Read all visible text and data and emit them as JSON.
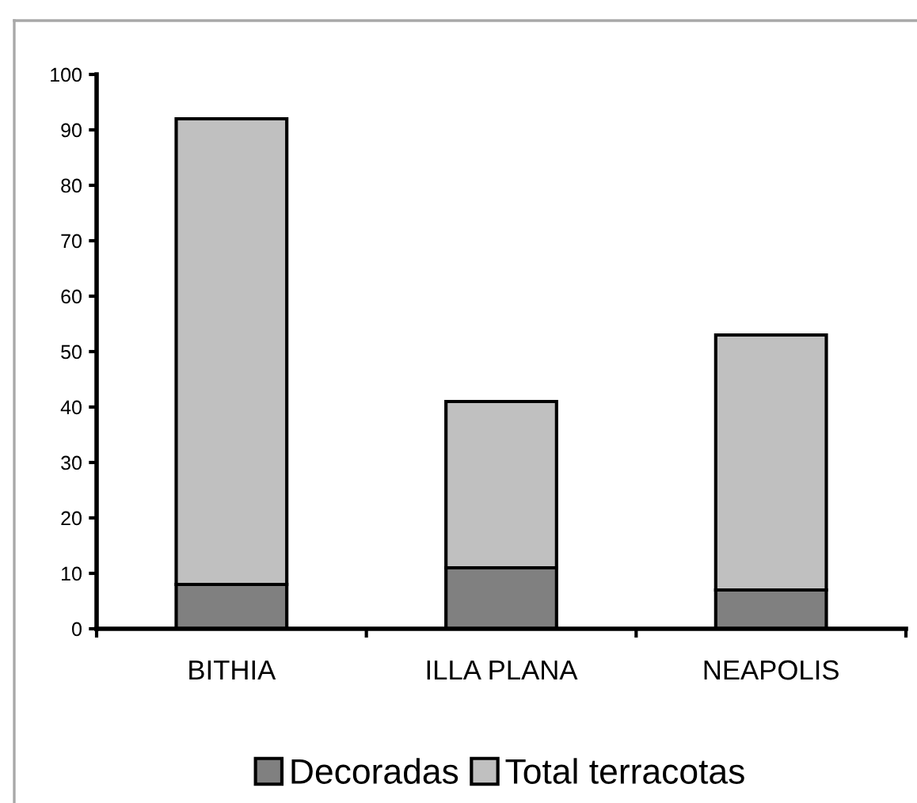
{
  "chart_data": {
    "type": "bar",
    "stacked": true,
    "categories": [
      "BITHIA",
      "ILLA PLANA",
      "NEAPOLIS"
    ],
    "series": [
      {
        "name": "Decoradas",
        "color": "#808080",
        "values": [
          8,
          11,
          7
        ]
      },
      {
        "name": "Total terracotas",
        "color": "#c0c0c0",
        "values": [
          84,
          30,
          46
        ]
      }
    ],
    "ylim": [
      0,
      100
    ],
    "yticks": [
      0,
      10,
      20,
      30,
      40,
      50,
      60,
      70,
      80,
      90,
      100
    ],
    "grid": false,
    "legend": "bottom"
  }
}
